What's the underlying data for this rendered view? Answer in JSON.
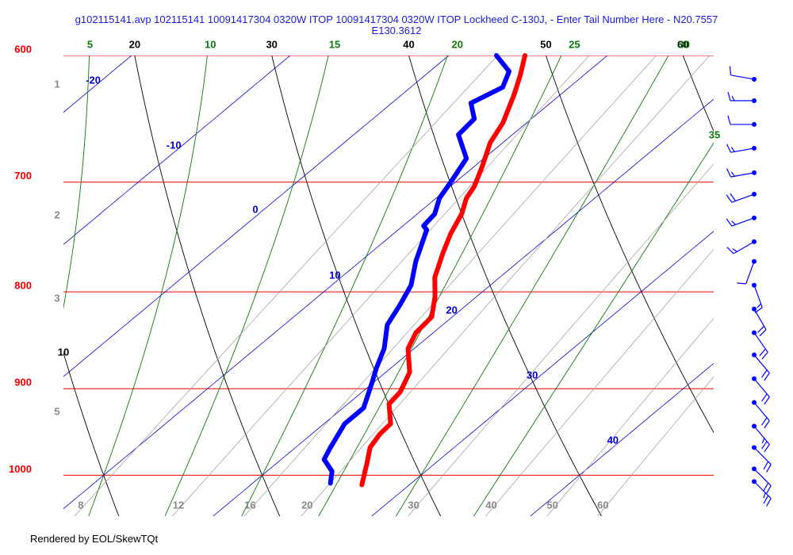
{
  "chart_data": {
    "type": "skewt",
    "title": "g102115141.avp 102115141 10091417304 0320W ITOP 10091417304 0320W ITOP Lockheed C-130J, - Enter Tail Number Here - N20.7557 E130.3612",
    "footer": "Rendered by EOL/SkewTQt",
    "log_scale": true,
    "ylim": [
      1050,
      600
    ],
    "yticks": [
      600,
      700,
      800,
      900,
      1000
    ],
    "xlim": [
      10.5,
      51.5
    ],
    "xticks": [
      -20,
      -10,
      0,
      10,
      20,
      30,
      40
    ],
    "dry_adiabats": [
      10,
      20,
      30,
      40,
      50,
      60
    ],
    "moist_adiabats": [
      5,
      10,
      15,
      20,
      25,
      30,
      35
    ],
    "mixing_ratios": [
      8,
      12,
      16,
      20,
      30,
      40,
      50,
      60
    ],
    "height_labels": [
      1,
      2,
      3,
      5
    ],
    "series": [
      {
        "color": "#ff0000",
        "pressure": [
          1011.6,
          985.6,
          966.8,
          951.1,
          939.3,
          916.9,
          903.7,
          882.2,
          857.1,
          840.7,
          824.7,
          805.0,
          785.9,
          763.5,
          745.3,
          727.6,
          713.7,
          703.4,
          686.7,
          667.1,
          651.2,
          629.6,
          614.6,
          600.0
        ],
        "values": [
          27.0,
          25.7,
          24.7,
          24.3,
          24.2,
          22.6,
          22.4,
          21.5,
          19.6,
          18.9,
          18.7,
          17.4,
          15.9,
          14.6,
          13.6,
          12.8,
          11.9,
          11.5,
          10.5,
          9.2,
          8.5,
          7.1,
          6.0,
          4.8
        ]
      },
      {
        "color": "#0000ff",
        "pressure": [
          1009.7,
          995.2,
          980.9,
          966.8,
          948.4,
          939.3,
          921.4,
          895.1,
          878.0,
          857.1,
          832.7,
          812.9,
          793.5,
          770.9,
          741.8,
          738.2,
          727.6,
          713.7,
          700.0,
          680.1,
          660.7,
          648.1,
          635.8,
          629.6,
          623.6,
          611.7,
          600.0
        ],
        "values": [
          24.9,
          24.1,
          22.7,
          22.2,
          21.6,
          21.3,
          21.3,
          20.0,
          19.1,
          18.1,
          16.5,
          15.8,
          15.0,
          13.5,
          11.8,
          11.3,
          11.1,
          10.2,
          9.7,
          8.9,
          6.6,
          6.4,
          5.0,
          5.4,
          5.8,
          5.0,
          3.0
        ]
      }
    ],
    "winds": {
      "pressure": [
        617.6,
        633.9,
        652.5,
        671.7,
        692.0,
        710.3,
        731.1,
        752.6,
        770.9,
        793.5,
        816.8,
        840.7,
        863.7,
        889.1,
        915.2,
        942.0,
        966.8,
        992.3,
        1007.7
      ],
      "speed": [
        10,
        15,
        10,
        15,
        15,
        20,
        15,
        15,
        10,
        15,
        20,
        20,
        20,
        20,
        20,
        25,
        20,
        20,
        25
      ],
      "direction": [
        280,
        270,
        270,
        260,
        260,
        250,
        250,
        240,
        200,
        160,
        150,
        145,
        140,
        140,
        140,
        140,
        135,
        135,
        135
      ],
      "color": "#0000ff"
    }
  }
}
